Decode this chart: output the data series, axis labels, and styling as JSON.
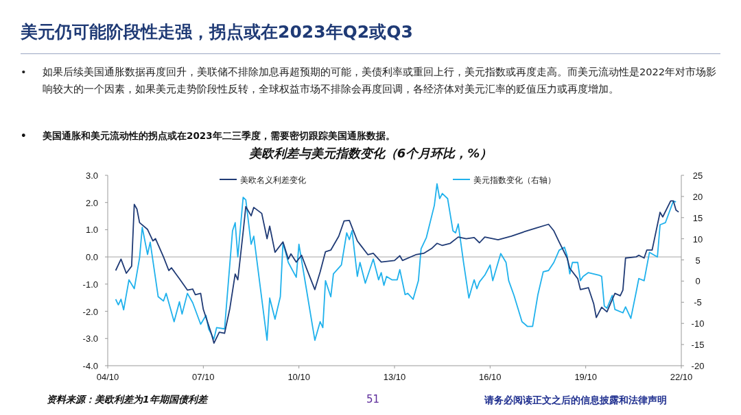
{
  "chart_data": {
    "type": "line",
    "title": "美元仍可能阶段性走强，拐点或在2023年Q2或Q3",
    "subtitle": "美欧利差与美元指数变化（6个月环比，%）",
    "annotations": [
      "• 如果后续美国通胀数据再度回升，美联储不排除加息再超预期的可能，美债利率或重回上行，美元指数或再度走高。而美元流动性是2022年对市场影响较大的一个因素，如果美元走势阶段性反转，全球权益市场不排除会再度回调，各经济体对美元汇率的贬值压力或再度增加。",
      "• 美国通胀和美元流动性的拐点或在2023年二三季度，需要密切跟踪美国通胀数据。",
      "资料来源：美欧利差为1年期国债利差",
      "51",
      "请务必阅读正文之后的信息披露和法律声明"
    ],
    "legend": "top",
    "xlim": [
      "2004-10",
      "2022-10"
    ],
    "xticks": [
      {
        "value": "2004-10",
        "label": "04/10"
      },
      {
        "value": "2007-10",
        "label": "07/10"
      },
      {
        "value": "2010-10",
        "label": "10/10"
      },
      {
        "value": "2013-10",
        "label": "13/10"
      },
      {
        "value": "2016-10",
        "label": "16/10"
      },
      {
        "value": "2019-10",
        "label": "19/10"
      },
      {
        "value": "2022-10",
        "label": "22/10"
      }
    ],
    "ylim": [
      -4,
      3
    ],
    "yticks": [
      {
        "value": 3,
        "label": "3.0"
      },
      {
        "value": 2,
        "label": "2.0"
      },
      {
        "value": 1,
        "label": "1.0"
      },
      {
        "value": 0,
        "label": "0.0"
      },
      {
        "value": -1,
        "label": "-1.0"
      },
      {
        "value": -2,
        "label": "-2.0"
      },
      {
        "value": -3,
        "label": "-3.0"
      },
      {
        "value": -4,
        "label": "-4.0"
      }
    ],
    "y2lim": [
      -20,
      25
    ],
    "y2ticks": [
      25,
      20,
      15,
      10,
      5,
      0,
      -5,
      -10,
      -15,
      -20
    ],
    "ref_lines": [
      {
        "axis": "y",
        "value": 0,
        "color": "#a6a6a6"
      }
    ],
    "series": [
      {
        "name": "美欧名义利差变化",
        "color": "#1f3a75",
        "x": [
          "2005-01",
          "2005-03",
          "2005-05",
          "2005-07",
          "2005-08",
          "2005-09",
          "2005-10",
          "2006-01",
          "2006-03",
          "2006-04",
          "2006-07",
          "2006-09",
          "2006-10",
          "2007-01",
          "2007-04",
          "2007-06",
          "2007-07",
          "2007-09",
          "2007-10",
          "2008-01",
          "2008-02",
          "2008-04",
          "2008-06",
          "2008-08",
          "2008-10",
          "2008-11",
          "2009-01",
          "2009-02",
          "2009-04",
          "2009-05",
          "2009-08",
          "2009-10",
          "2009-11",
          "2010-01",
          "2010-04",
          "2010-06",
          "2010-07",
          "2010-09",
          "2010-11",
          "2011-01",
          "2011-04",
          "2011-06",
          "2011-08",
          "2011-10",
          "2012-01",
          "2012-03",
          "2012-05",
          "2012-08",
          "2012-09",
          "2012-12",
          "2013-02",
          "2013-05",
          "2013-10",
          "2013-12",
          "2014-01",
          "2014-06",
          "2014-09",
          "2014-12",
          "2015-02",
          "2015-04",
          "2015-07",
          "2015-10",
          "2016-01",
          "2016-04",
          "2016-06",
          "2016-08",
          "2017-01",
          "2017-06",
          "2017-11",
          "2018-03",
          "2018-08",
          "2018-10",
          "2018-12",
          "2019-03",
          "2019-04",
          "2019-07",
          "2019-08",
          "2019-11",
          "2020-01",
          "2020-02",
          "2020-04",
          "2020-06",
          "2020-09",
          "2020-11",
          "2020-12",
          "2021-01",
          "2021-05",
          "2021-06",
          "2021-08",
          "2021-09",
          "2021-11",
          "2022-02",
          "2022-03",
          "2022-06",
          "2022-07",
          "2022-08",
          "2022-09"
        ],
        "values": [
          -0.5,
          -0.08,
          -0.6,
          -0.34,
          1.93,
          1.76,
          1.26,
          1.01,
          0.59,
          0.67,
          0,
          -0.5,
          -0.4,
          -0.8,
          -1.22,
          -1.18,
          -1.39,
          -1.34,
          -1.93,
          -2.81,
          -3.17,
          -2.77,
          -2.81,
          -1.89,
          -0.63,
          -0.84,
          0.92,
          1.85,
          1.51,
          1.82,
          1.6,
          0.67,
          1.13,
          0.17,
          0.55,
          -0.08,
          0.11,
          -0.19,
          0.06,
          -0.46,
          -1.2,
          -0.55,
          0.19,
          0.25,
          0.76,
          1.32,
          1.34,
          0.59,
          0.46,
          0.08,
          0.13,
          -0.19,
          -0.13,
          0.04,
          -0.13,
          0.08,
          0.13,
          0.31,
          0.5,
          0.42,
          0.5,
          0.73,
          0.67,
          0.71,
          0.52,
          0.73,
          0.63,
          0.76,
          0.93,
          1.05,
          1.2,
          0.96,
          0.55,
          -0.04,
          -0.42,
          -0.8,
          -1.2,
          -1.13,
          -1.72,
          -2.23,
          -1.85,
          -2.02,
          -1.34,
          -1.43,
          -1.22,
          -0.04,
          0,
          0.06,
          -0.04,
          0.25,
          0.25,
          1.64,
          1.47,
          2.06,
          2.06,
          1.72,
          1.65
        ]
      },
      {
        "name": "美元指数变化（右轴）",
        "color": "#1fb1ec",
        "axis": "y2",
        "x": [
          "2005-01",
          "2005-02",
          "2005-03",
          "2005-04",
          "2005-06",
          "2005-08",
          "2005-10",
          "2005-11",
          "2006-01",
          "2006-02",
          "2006-05",
          "2006-07",
          "2006-08",
          "2006-11",
          "2007-01",
          "2007-02",
          "2007-04",
          "2007-06",
          "2007-09",
          "2007-11",
          "2007-12",
          "2008-02",
          "2008-03",
          "2008-06",
          "2008-09",
          "2008-10",
          "2008-11",
          "2009-01",
          "2009-02",
          "2009-04",
          "2009-05",
          "2009-10",
          "2009-11",
          "2010-01",
          "2010-03",
          "2010-04",
          "2010-06",
          "2010-09",
          "2010-10",
          "2011-01",
          "2011-02",
          "2011-04",
          "2011-06",
          "2011-07",
          "2011-08",
          "2011-10",
          "2011-11",
          "2012-02",
          "2012-04",
          "2012-05",
          "2012-06",
          "2012-08",
          "2012-09",
          "2012-11",
          "2013-02",
          "2013-04",
          "2013-05",
          "2013-06",
          "2013-07",
          "2013-09",
          "2013-11",
          "2013-12",
          "2014-02",
          "2014-03",
          "2014-05",
          "2014-07",
          "2014-08",
          "2014-10",
          "2015-01",
          "2015-02",
          "2015-03",
          "2015-04",
          "2015-06",
          "2015-08",
          "2015-09",
          "2015-10",
          "2015-12",
          "2016-02",
          "2016-03",
          "2016-04",
          "2016-05",
          "2016-06",
          "2016-08",
          "2016-10",
          "2016-11",
          "2017-02",
          "2017-04",
          "2017-05",
          "2017-07",
          "2017-10",
          "2017-12",
          "2018-02",
          "2018-04",
          "2018-06",
          "2018-08",
          "2018-10",
          "2018-12",
          "2019-02",
          "2019-03",
          "2019-04",
          "2019-05",
          "2019-07",
          "2019-08",
          "2019-09",
          "2019-11",
          "2020-03",
          "2020-04",
          "2020-05",
          "2020-06",
          "2020-08",
          "2020-09",
          "2020-12",
          "2021-01",
          "2021-03",
          "2021-05",
          "2021-06",
          "2021-08",
          "2021-10",
          "2022-01",
          "2022-02",
          "2022-04",
          "2022-07",
          "2022-08"
        ],
        "values": [
          -4.3,
          -5.6,
          -4.3,
          -6.8,
          0.3,
          -1.8,
          5.5,
          12.7,
          6.3,
          9.2,
          -3.7,
          -4.7,
          -2.9,
          -9.6,
          -4.9,
          -7.8,
          -2.9,
          -5.1,
          -10.2,
          -8.1,
          -11.3,
          -13.7,
          -11,
          -11.3,
          11.9,
          13.8,
          5.7,
          19.8,
          19.2,
          8.7,
          10.6,
          -14,
          -4,
          -9,
          -3.7,
          9,
          4.4,
          0.9,
          8.7,
          -2.6,
          -6.4,
          -14,
          -9.6,
          -11,
          0.1,
          -3.7,
          1.7,
          3.8,
          11.4,
          9.8,
          11.9,
          1.1,
          4.4,
          -0.5,
          5.2,
          0.3,
          2,
          -1,
          1.1,
          0.3,
          0.3,
          2.7,
          -3.2,
          -2.9,
          -4.3,
          0.1,
          7.6,
          10.3,
          17.9,
          23,
          19.5,
          20.7,
          19.5,
          11.9,
          11.4,
          13.5,
          4.4,
          -4,
          -1.8,
          0.3,
          -1.8,
          -0.2,
          1.4,
          3.8,
          0.1,
          6.5,
          4.4,
          0.1,
          -3.4,
          -9.6,
          -10.7,
          -10.7,
          -3.2,
          2.2,
          2.5,
          4.4,
          7.3,
          8,
          6,
          1.7,
          4.4,
          4.4,
          0.1,
          1.1,
          2,
          1.4,
          1.1,
          -5.9,
          -6.4,
          -3.4,
          -6.7,
          -7.5,
          -6.1,
          -8.8,
          -2.6,
          0.6,
          0.1,
          6.8,
          5.7,
          13.3,
          13.8,
          18.9,
          18.7
        ]
      }
    ]
  }
}
